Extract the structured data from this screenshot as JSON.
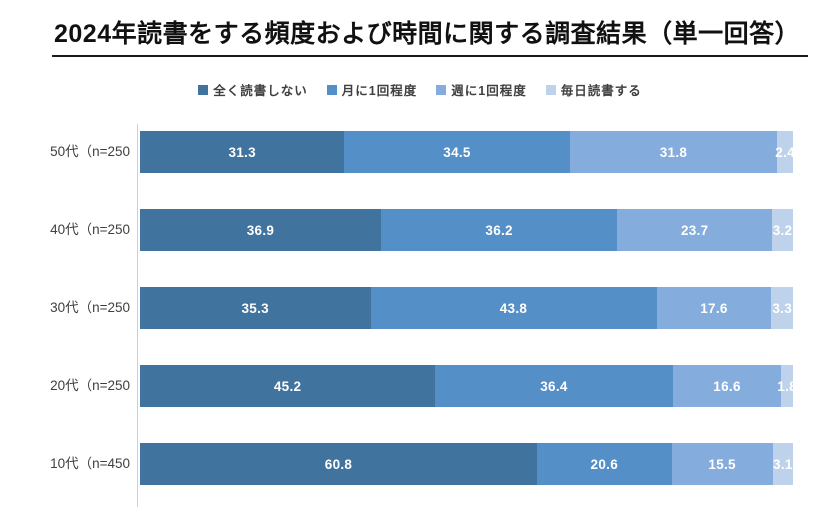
{
  "title": "2024年読書をする頻度および時間に関する調査結果（単一回答）",
  "chart_data": {
    "type": "bar",
    "orientation": "horizontal",
    "stacked": true,
    "title": "2024年読書をする頻度および時間に関する調査結果（単一回答）",
    "categories": [
      "50代（n=250",
      "40代（n=250",
      "30代（n=250",
      "20代（n=250",
      "10代（n=450"
    ],
    "series": [
      {
        "name": "全く読書しない",
        "color": "#41739F",
        "values": [
          31.3,
          36.9,
          35.3,
          45.2,
          60.8
        ]
      },
      {
        "name": "月に1回程度",
        "color": "#548FC8",
        "values": [
          34.5,
          36.2,
          43.8,
          36.4,
          20.6
        ]
      },
      {
        "name": "週に1回程度",
        "color": "#84ACDC",
        "values": [
          31.8,
          23.7,
          17.6,
          16.6,
          15.5
        ]
      },
      {
        "name": "毎日読書する",
        "color": "#BFD2EB",
        "values": [
          2.4,
          3.2,
          3.3,
          1.8,
          3.1
        ]
      }
    ],
    "value_labels": "inside-white-bold",
    "xlabel": "",
    "ylabel": "",
    "xlim": [
      0,
      100
    ],
    "grid": false,
    "legend_position": "top"
  },
  "colors": {
    "background": "#ffffff",
    "axis_line": "#cfcfcf",
    "title_text": "#111111",
    "label_text": "#3f3f3f",
    "value_text": "#ffffff"
  }
}
